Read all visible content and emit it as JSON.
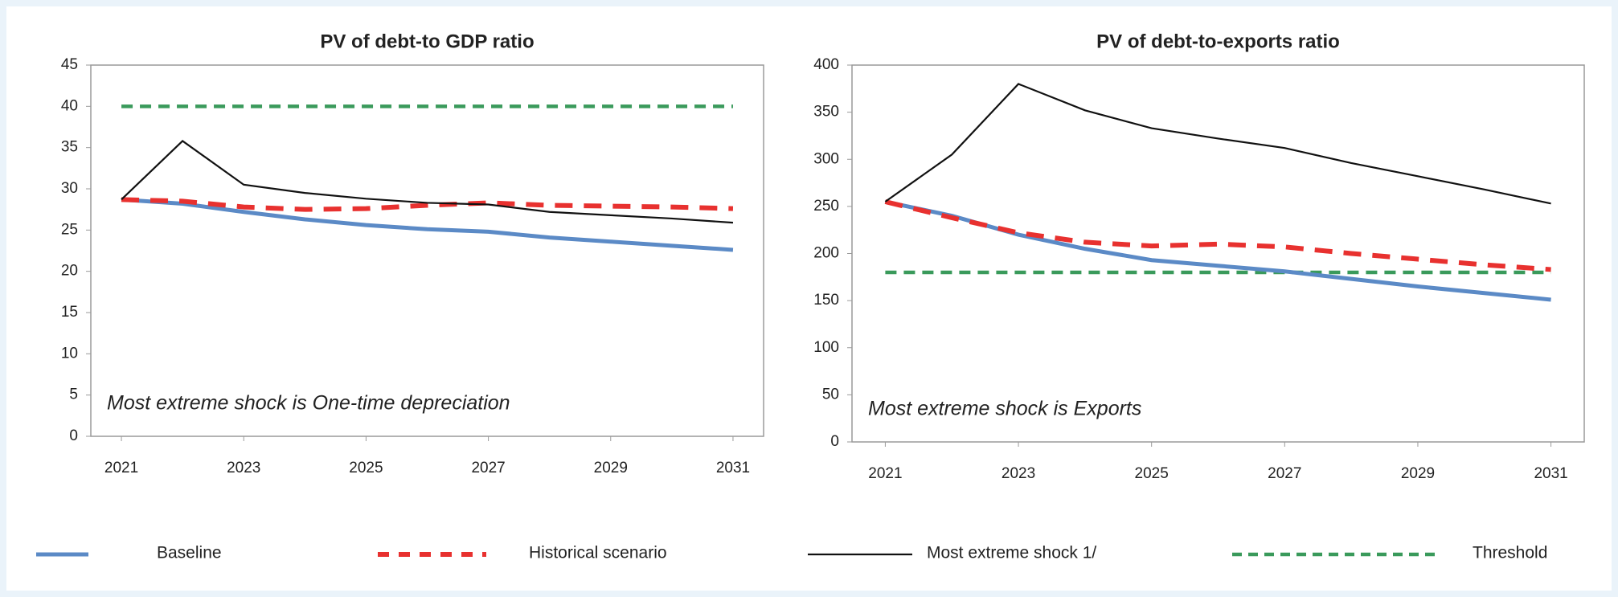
{
  "chart_data": [
    {
      "type": "line",
      "title": "PV of debt-to GDP ratio",
      "annotation": "Most extreme shock is One-time depreciation",
      "x": [
        2021,
        2022,
        2023,
        2024,
        2025,
        2026,
        2027,
        2028,
        2029,
        2030,
        2031
      ],
      "xlim": [
        2020.5,
        2031.5
      ],
      "xticks": [
        2021,
        2023,
        2025,
        2027,
        2029,
        2031
      ],
      "ylim": [
        0,
        45
      ],
      "yticks": [
        0,
        5,
        10,
        15,
        20,
        25,
        30,
        35,
        40,
        45
      ],
      "series": [
        {
          "name": "Baseline",
          "color": "#5b8ac6",
          "dashed": false,
          "values": [
            28.7,
            28.2,
            27.2,
            26.3,
            25.6,
            25.1,
            24.8,
            24.1,
            23.6,
            23.1,
            22.6
          ]
        },
        {
          "name": "Historical scenario",
          "color": "#e8312f",
          "dashed": true,
          "values": [
            28.7,
            28.5,
            27.8,
            27.5,
            27.6,
            28.0,
            28.3,
            28.0,
            27.9,
            27.8,
            27.6
          ]
        },
        {
          "name": "Most extreme shock 1/",
          "color": "#111111",
          "dashed": false,
          "values": [
            28.7,
            35.8,
            30.5,
            29.5,
            28.8,
            28.3,
            28.1,
            27.2,
            26.8,
            26.4,
            25.9
          ]
        },
        {
          "name": "Threshold",
          "color": "#3a9a5b",
          "dashed": true,
          "values": [
            40,
            40,
            40,
            40,
            40,
            40,
            40,
            40,
            40,
            40,
            40
          ]
        }
      ]
    },
    {
      "type": "line",
      "title": "PV of debt-to-exports ratio",
      "annotation": "Most extreme shock is Exports",
      "x": [
        2021,
        2022,
        2023,
        2024,
        2025,
        2026,
        2027,
        2028,
        2029,
        2030,
        2031
      ],
      "xlim": [
        2020.5,
        2031.5
      ],
      "xticks": [
        2021,
        2023,
        2025,
        2027,
        2029,
        2031
      ],
      "ylim": [
        0,
        400
      ],
      "yticks": [
        0,
        50,
        100,
        150,
        200,
        250,
        300,
        350,
        400
      ],
      "series": [
        {
          "color": "#5b8ac6",
          "dashed": false,
          "values": [
            255,
            240,
            220,
            205,
            193,
            187,
            181,
            173,
            165,
            158,
            151
          ]
        },
        {
          "color": "#e8312f",
          "dashed": true,
          "values": [
            255,
            238,
            222,
            212,
            208,
            210,
            207,
            200,
            194,
            188,
            183
          ]
        },
        {
          "color": "#111111",
          "dashed": false,
          "values": [
            255,
            305,
            380,
            352,
            333,
            322,
            312,
            296,
            282,
            268,
            253
          ]
        },
        {
          "color": "#3a9a5b",
          "dashed": true,
          "values": [
            180,
            180,
            180,
            180,
            180,
            180,
            180,
            180,
            180,
            180,
            180
          ]
        }
      ]
    }
  ]
}
